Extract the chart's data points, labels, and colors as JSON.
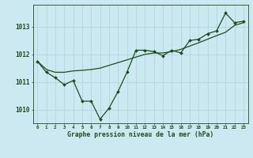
{
  "hours": [
    0,
    1,
    2,
    3,
    4,
    5,
    6,
    7,
    8,
    9,
    10,
    11,
    12,
    13,
    14,
    15,
    16,
    17,
    18,
    19,
    20,
    21,
    22,
    23
  ],
  "pressure_main": [
    1011.75,
    1011.35,
    1011.15,
    1010.9,
    1011.05,
    1010.3,
    1010.3,
    1009.65,
    1010.05,
    1010.65,
    1011.35,
    1012.15,
    1012.15,
    1012.1,
    1011.95,
    1012.15,
    1012.05,
    1012.5,
    1012.55,
    1012.75,
    1012.85,
    1013.5,
    1013.15,
    1013.2
  ],
  "pressure_smooth": [
    1011.75,
    1011.45,
    1011.35,
    1011.35,
    1011.4,
    1011.42,
    1011.45,
    1011.5,
    1011.6,
    1011.7,
    1011.8,
    1011.9,
    1012.0,
    1012.05,
    1012.05,
    1012.1,
    1012.18,
    1012.3,
    1012.42,
    1012.55,
    1012.68,
    1012.8,
    1013.05,
    1013.15
  ],
  "ylim": [
    1009.5,
    1013.8
  ],
  "yticks": [
    1010,
    1011,
    1012,
    1013
  ],
  "xlabel": "Graphe pression niveau de la mer (hPa)",
  "bg_color": "#cce8f0",
  "line_color": "#1e4d1a",
  "grid_color": "#aed6e0",
  "tick_label_color": "#1e4d1a",
  "xlabel_color": "#1e4d1a",
  "markersize": 2.0,
  "linewidth": 0.9
}
